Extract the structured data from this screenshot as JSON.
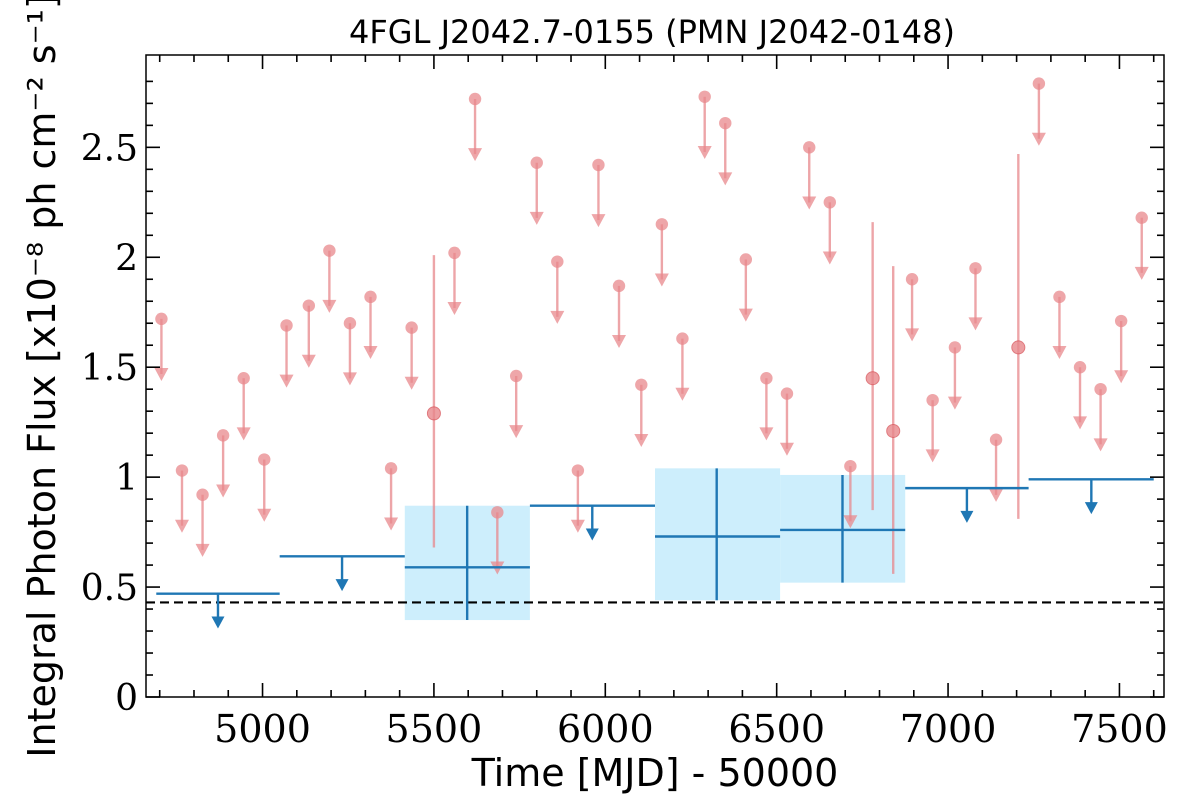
{
  "chart_data": {
    "type": "scatter",
    "title": "4FGL J2042.7-0155 (PMN J2042-0148)",
    "xlabel": "Time [MJD] - 50000",
    "ylabel": "Integral Photon Flux [x10⁻⁸ ph cm⁻² s⁻¹]",
    "xlim": [
      4660,
      7630
    ],
    "ylim": [
      0,
      2.92
    ],
    "x_ticks": [
      5000,
      5500,
      6000,
      6500,
      7000,
      7500
    ],
    "x_tick_labels": [
      "5000",
      "5500",
      "6000",
      "6500",
      "7000",
      "7500"
    ],
    "y_ticks": [
      0,
      0.5,
      1,
      1.5,
      2,
      2.5
    ],
    "y_tick_labels": [
      "0",
      "0.5",
      "1",
      "1.5",
      "2",
      "2.5"
    ],
    "grid": false,
    "colors": {
      "short_bins": "#e8888c",
      "long_bins": "#1f77b4",
      "long_bins_fill": "#cdeefc",
      "reference_line": "#000000"
    },
    "reference_line": {
      "y": 0.43,
      "style": "dashed"
    },
    "series": [
      {
        "bin": "short",
        "upper_limits": [
          [
            4705,
            1.72
          ],
          [
            4765,
            1.03
          ],
          [
            4825,
            0.92
          ],
          [
            4885,
            1.19
          ],
          [
            4945,
            1.45
          ],
          [
            5005,
            1.08
          ],
          [
            5070,
            1.69
          ],
          [
            5135,
            1.78
          ],
          [
            5195,
            2.03
          ],
          [
            5255,
            1.7
          ],
          [
            5315,
            1.82
          ],
          [
            5375,
            1.04
          ],
          [
            5435,
            1.68
          ],
          [
            5560,
            2.02
          ],
          [
            5620,
            2.72
          ],
          [
            5685,
            0.84
          ],
          [
            5740,
            1.46
          ],
          [
            5800,
            2.43
          ],
          [
            5860,
            1.98
          ],
          [
            5920,
            1.03
          ],
          [
            5980,
            2.42
          ],
          [
            6040,
            1.87
          ],
          [
            6105,
            1.42
          ],
          [
            6165,
            2.15
          ],
          [
            6225,
            1.63
          ],
          [
            6290,
            2.73
          ],
          [
            6350,
            2.61
          ],
          [
            6410,
            1.99
          ],
          [
            6470,
            1.45
          ],
          [
            6530,
            1.38
          ],
          [
            6595,
            2.5
          ],
          [
            6655,
            2.25
          ],
          [
            6715,
            1.05
          ],
          [
            6895,
            1.9
          ],
          [
            6955,
            1.35
          ],
          [
            7020,
            1.59
          ],
          [
            7080,
            1.95
          ],
          [
            7140,
            1.17
          ],
          [
            7265,
            2.79
          ],
          [
            7325,
            1.82
          ],
          [
            7385,
            1.5
          ],
          [
            7445,
            1.4
          ],
          [
            7505,
            1.71
          ],
          [
            7565,
            2.18
          ]
        ],
        "detections": [
          {
            "x": 5500,
            "y": 1.29,
            "y_low": 0.68,
            "y_high": 2.01
          },
          {
            "x": 6780,
            "y": 1.45,
            "y_low": 0.85,
            "y_high": 2.16
          },
          {
            "x": 6840,
            "y": 1.21,
            "y_low": 0.56,
            "y_high": 1.96
          },
          {
            "x": 7205,
            "y": 1.59,
            "y_low": 0.81,
            "y_high": 2.47
          }
        ]
      },
      {
        "bin": "long",
        "upper_limits": [
          {
            "x_start": 4690,
            "x_end": 5050,
            "y": 0.47,
            "arrow_x": 4870
          },
          {
            "x_start": 5050,
            "x_end": 5415,
            "y": 0.64,
            "arrow_x": 5232
          },
          {
            "x_start": 5780,
            "x_end": 6145,
            "y": 0.87,
            "arrow_x": 5962
          },
          {
            "x_start": 6875,
            "x_end": 7235,
            "y": 0.95,
            "arrow_x": 7055
          },
          {
            "x_start": 7235,
            "x_end": 7600,
            "y": 0.99,
            "arrow_x": 7418
          }
        ],
        "detections": [
          {
            "x": 5597,
            "x_start": 5415,
            "x_end": 5780,
            "y": 0.59,
            "y_low": 0.35,
            "y_high": 0.87
          },
          {
            "x": 6325,
            "x_start": 6145,
            "x_end": 6510,
            "y": 0.73,
            "y_low": 0.44,
            "y_high": 1.04
          },
          {
            "x": 6692,
            "x_start": 6510,
            "x_end": 6875,
            "y": 0.76,
            "y_low": 0.52,
            "y_high": 1.01
          }
        ]
      }
    ]
  }
}
